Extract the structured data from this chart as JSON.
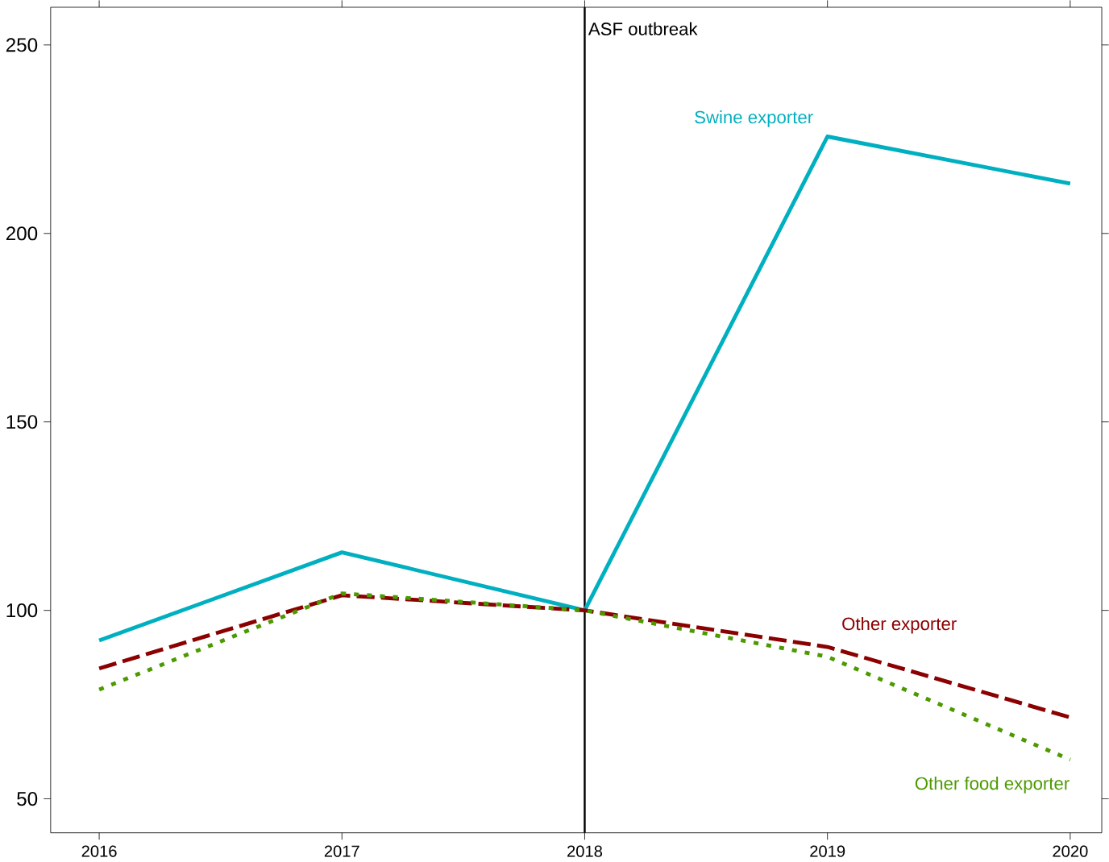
{
  "chart_data": {
    "type": "line",
    "x": [
      2016,
      2017,
      2018,
      2019,
      2020
    ],
    "series": [
      {
        "name": "Swine exporter",
        "color": "#00b0c0",
        "values": [
          92,
          115.4,
          100,
          225.7,
          213.2
        ],
        "line_style": "solid"
      },
      {
        "name": "Other exporter",
        "color": "#8b0000",
        "values": [
          84.6,
          104,
          100,
          90.3,
          71.6
        ],
        "line_style": "dashed"
      },
      {
        "name": "Other food exporter",
        "color": "#4c9a00",
        "values": [
          79,
          104.5,
          100,
          87.7,
          60.4
        ],
        "line_style": "dotted"
      }
    ],
    "xlim": [
      2015.8,
      2020.13
    ],
    "ylim": [
      41,
      260
    ],
    "xticks": [
      2016,
      2017,
      2018,
      2019,
      2020
    ],
    "yticks": [
      50,
      100,
      150,
      200,
      250
    ],
    "ref_lines": [
      {
        "axis": "x",
        "value": 2018,
        "label": "ASF outbreak",
        "color": "#000000"
      }
    ],
    "marker": "none"
  }
}
